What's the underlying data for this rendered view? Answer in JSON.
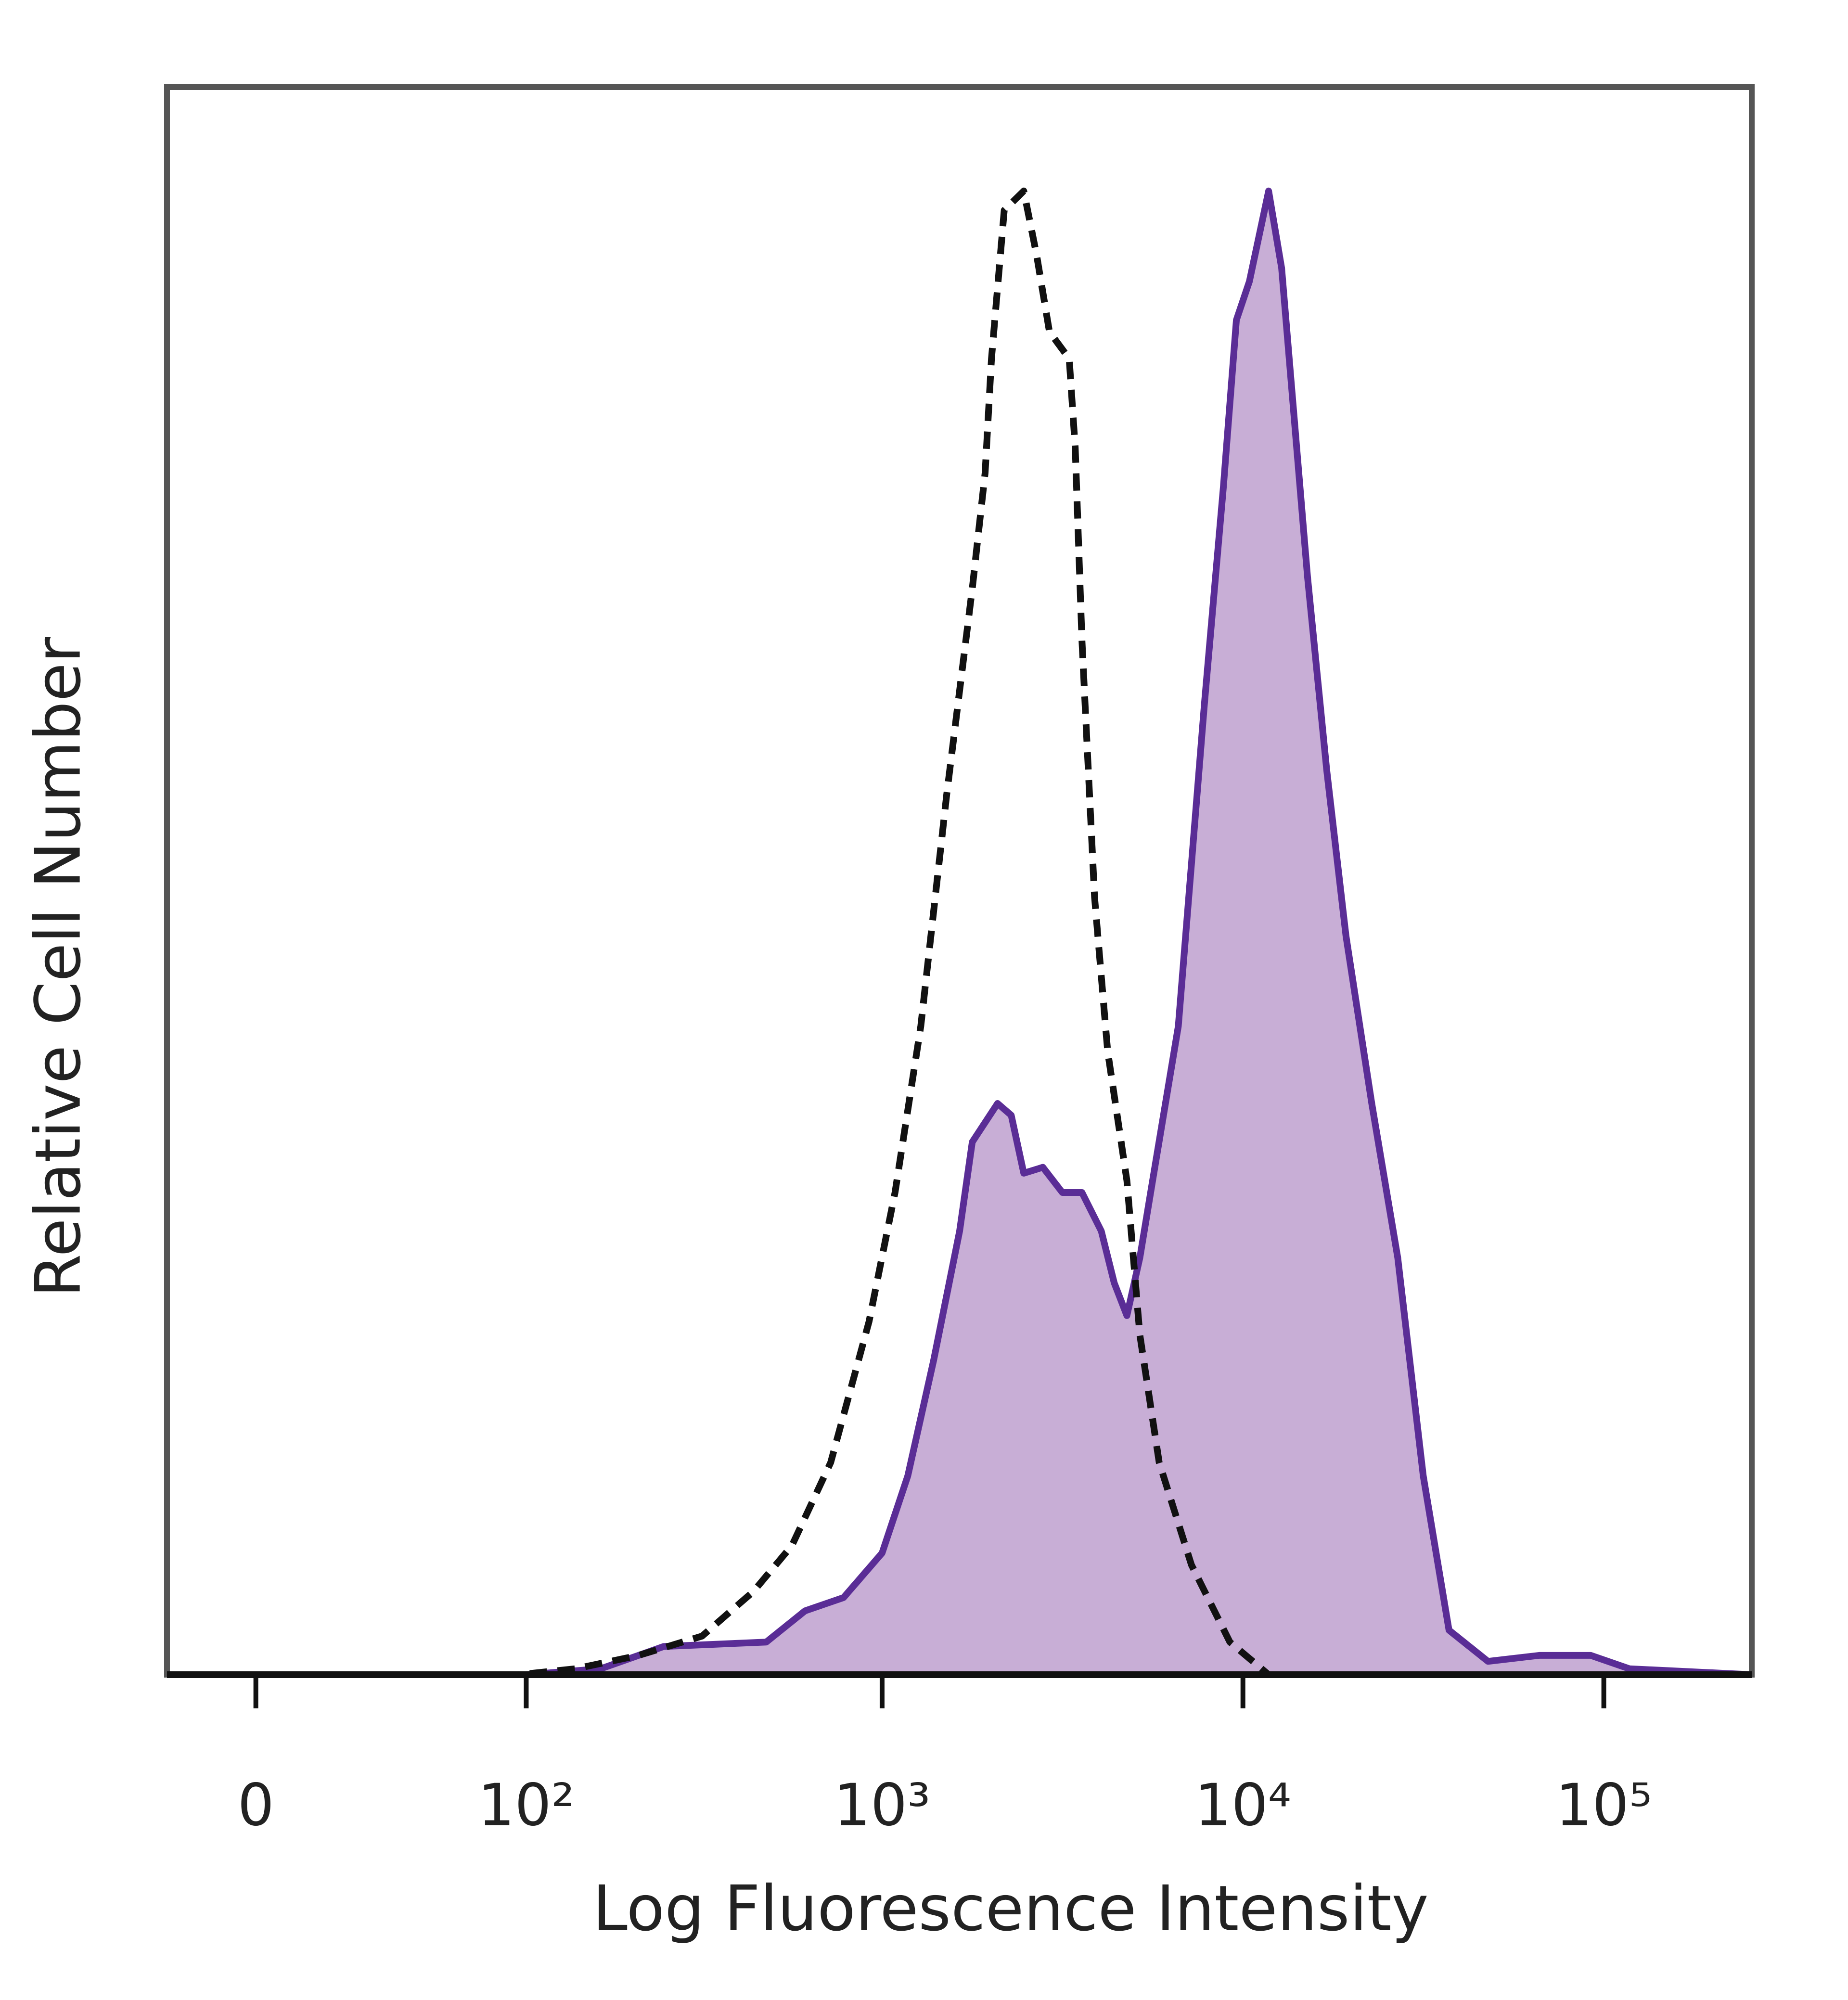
{
  "chart_data": {
    "type": "histogram-overlay",
    "x_label": "Log Fluorescence Intensity",
    "y_label": "Relative Cell Number",
    "xscale": "biexponential",
    "xlim": [
      -22,
      257000
    ],
    "xticks": [
      0,
      {
        "value": 100,
        "label": "10²"
      },
      {
        "value": 1000,
        "label": "10³"
      },
      {
        "value": 10000,
        "label": "10⁴"
      },
      {
        "value": 100000,
        "label": "10⁵"
      }
    ],
    "ylim": [
      0,
      107
    ],
    "series": [
      {
        "color": "#5a2d96",
        "fill_color": "#c8aed6",
        "line_style": "solid",
        "filled": true,
        "x": [
          -22,
          100,
          164,
          247,
          477,
          611,
          782,
          1000,
          1178,
          1390,
          1640,
          1778,
          2090,
          2280,
          2470,
          2790,
          3160,
          3580,
          4050,
          4400,
          4770,
          5180,
          5620,
          6620,
          7820,
          8830,
          9590,
          10420,
          11780,
          12800,
          13900,
          15100,
          17060,
          19300,
          22750,
          26850,
          31600,
          37240,
          47750,
          66220,
          92000,
          117800,
          257000
        ],
        "values": [
          0,
          0,
          0.4,
          1.9,
          2.2,
          4.3,
          5.2,
          8.2,
          13.4,
          21.2,
          29.9,
          35.9,
          38.5,
          37.7,
          33.8,
          34.2,
          32.5,
          32.5,
          29.9,
          26.4,
          24.2,
          28.1,
          33.3,
          43.7,
          65.4,
          80.1,
          91.3,
          93.9,
          100,
          94.8,
          84.4,
          74.0,
          61.0,
          49.8,
          38.5,
          28.1,
          13.4,
          3.0,
          0.9,
          1.3,
          1.3,
          0.4,
          0
        ]
      },
      {
        "color": "#111111",
        "line_style": "dashed",
        "filled": false,
        "x": [
          -22,
          95,
          139,
          210,
          316,
          439,
          562,
          720,
          920,
          1086,
          1280,
          1510,
          1778,
          1930,
          2010,
          2180,
          2470,
          2680,
          2910,
          3300,
          3430,
          3580,
          3880,
          4220,
          4770,
          5180,
          5860,
          7200,
          9200,
          11780,
          257000
        ],
        "values": [
          0,
          0,
          0.4,
          1.3,
          2.6,
          5.6,
          8.7,
          14.3,
          23.8,
          32.5,
          43.7,
          59.3,
          73.2,
          81.0,
          88.7,
          98.7,
          100,
          95.7,
          90.5,
          88.7,
          82.7,
          69.7,
          52.4,
          42.0,
          33.3,
          22.9,
          14.3,
          7.4,
          2.2,
          0,
          0
        ]
      }
    ]
  }
}
